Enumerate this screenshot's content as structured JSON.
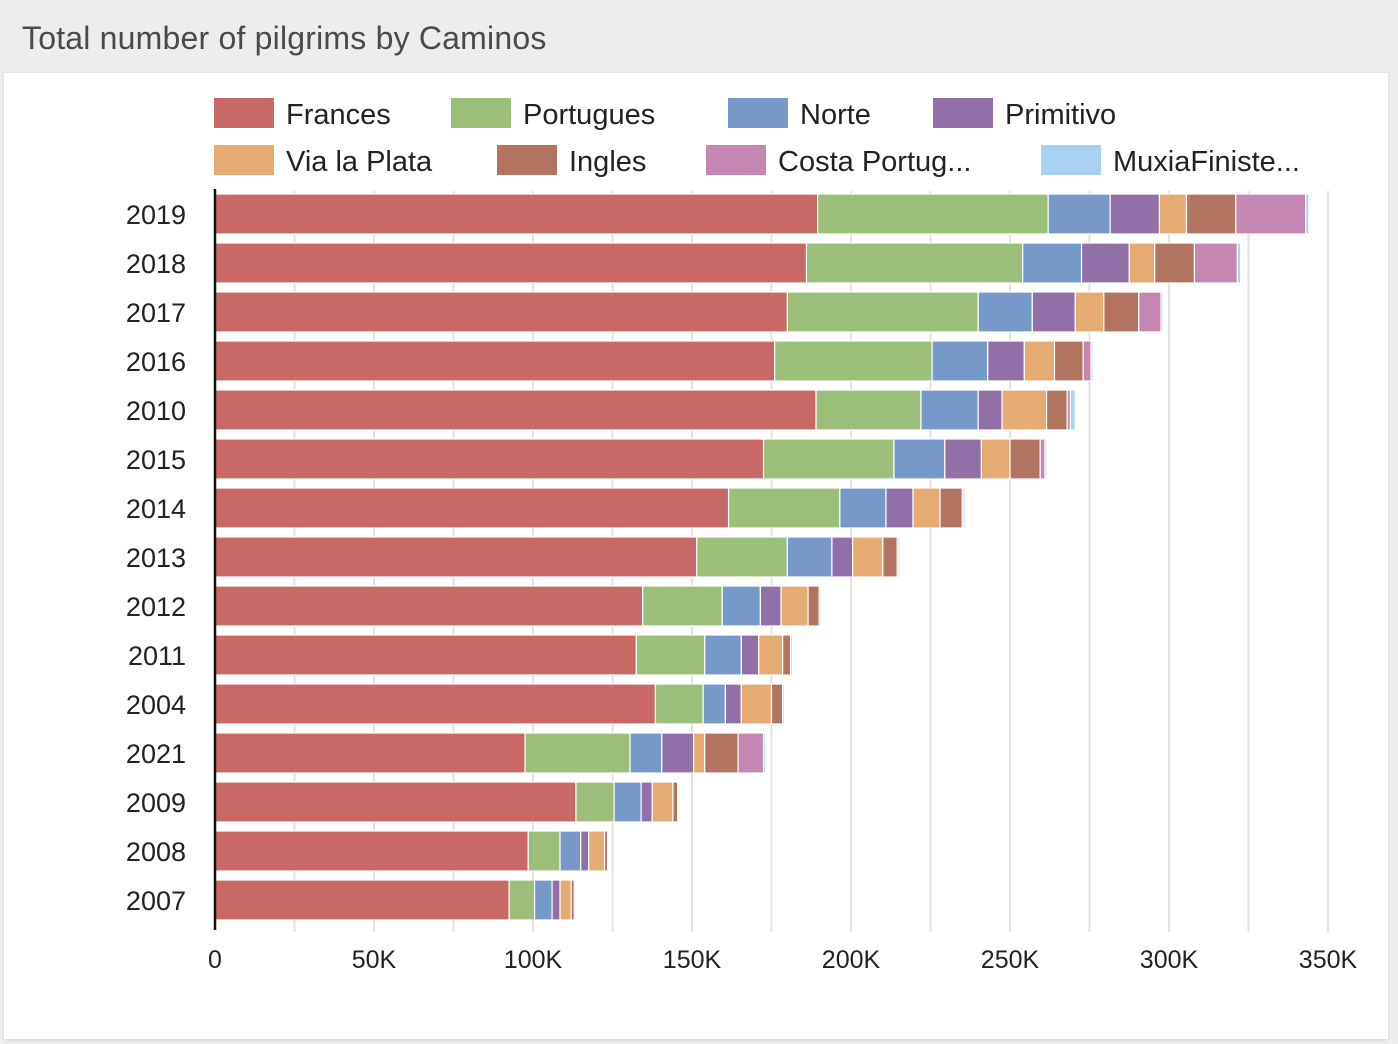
{
  "header": {
    "title": "Total number of pilgrims by Caminos"
  },
  "colors": {
    "Frances": "#c96966",
    "Portugues": "#9bbf79",
    "Norte": "#7799c9",
    "Primitivo": "#9170a8",
    "Via la Plata": "#e5ab72",
    "Ingles": "#b27460",
    "Costa Portug...": "#c387b2",
    "MuxiaFiniste...": "#a9d1f1"
  },
  "chart_data": {
    "type": "bar",
    "orientation": "horizontal",
    "stacked": true,
    "title": "Total number of pilgrims by Caminos",
    "legend_position": "top",
    "xlim": [
      0,
      350000
    ],
    "x_ticks": [
      {
        "value": 0,
        "label": "0"
      },
      {
        "value": 50000,
        "label": "50K"
      },
      {
        "value": 100000,
        "label": "100K"
      },
      {
        "value": 150000,
        "label": "150K"
      },
      {
        "value": 200000,
        "label": "200K"
      },
      {
        "value": 250000,
        "label": "250K"
      },
      {
        "value": 300000,
        "label": "300K"
      },
      {
        "value": 350000,
        "label": "350K"
      }
    ],
    "categories": [
      "2019",
      "2018",
      "2017",
      "2016",
      "2010",
      "2015",
      "2014",
      "2013",
      "2012",
      "2011",
      "2004",
      "2021",
      "2009",
      "2008",
      "2007"
    ],
    "series": [
      {
        "name": "Frances",
        "values": [
          189500,
          186000,
          180000,
          176000,
          189000,
          172500,
          161500,
          151500,
          134500,
          132500,
          138500,
          97500,
          113500,
          98500,
          92500
        ]
      },
      {
        "name": "Portugues",
        "values": [
          72500,
          68000,
          60000,
          49500,
          33000,
          41000,
          35000,
          28500,
          25000,
          21500,
          15000,
          33000,
          12000,
          10000,
          8000
        ]
      },
      {
        "name": "Norte",
        "values": [
          19500,
          18500,
          17000,
          17500,
          18000,
          16000,
          14500,
          14000,
          12000,
          11500,
          7000,
          10000,
          8500,
          6500,
          5500
        ]
      },
      {
        "name": "Primitivo",
        "values": [
          15500,
          15000,
          13500,
          11500,
          7500,
          11500,
          8500,
          6500,
          6500,
          5500,
          5000,
          10000,
          3500,
          2500,
          2500
        ]
      },
      {
        "name": "Via la Plata",
        "values": [
          8500,
          8000,
          9000,
          9500,
          14000,
          9000,
          8500,
          9500,
          8500,
          7500,
          9500,
          3500,
          6500,
          5000,
          3500
        ]
      },
      {
        "name": "Ingles",
        "values": [
          15500,
          12500,
          11000,
          9000,
          6500,
          9500,
          7000,
          4500,
          3500,
          2500,
          3500,
          10500,
          1500,
          1000,
          1000
        ]
      },
      {
        "name": "Costa Portug...",
        "values": [
          22000,
          13500,
          7000,
          2500,
          1000,
          1500,
          500,
          500,
          500,
          500,
          500,
          8000,
          300,
          300,
          300
        ]
      },
      {
        "name": "MuxiaFiniste...",
        "values": [
          1000,
          1000,
          600,
          600,
          1500,
          600,
          500,
          500,
          300,
          300,
          300,
          600,
          300,
          300,
          300
        ]
      }
    ]
  }
}
